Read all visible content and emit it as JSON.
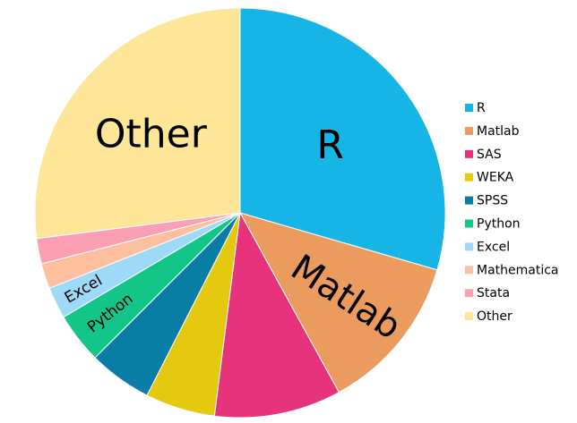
{
  "chart_data": {
    "type": "pie",
    "title": "",
    "categories": [
      "R",
      "Matlab",
      "SAS",
      "WEKA",
      "SPSS",
      "Python",
      "Excel",
      "Mathematica",
      "Stata",
      "Other"
    ],
    "values": [
      29.5,
      12.5,
      10.0,
      5.5,
      5.0,
      4.0,
      2.5,
      2.0,
      2.0,
      27.0
    ],
    "colors": [
      "#17b4e6",
      "#ea9b5d",
      "#e7327c",
      "#e5c90f",
      "#0a7da6",
      "#13c586",
      "#9fd9f8",
      "#fcc09e",
      "#fc9fb5",
      "#fde697"
    ],
    "slice_labels": [
      "R",
      "Matlab",
      "",
      "",
      "",
      "Python",
      "Excel",
      "",
      "",
      "Other"
    ],
    "start_angle": "12 o'clock",
    "direction": "clockwise",
    "legend": {
      "position": "right",
      "entries": [
        "R",
        "Matlab",
        "SAS",
        "WEKA",
        "SPSS",
        "Python",
        "Excel",
        "Mathematica",
        "Stata",
        "Other"
      ]
    }
  }
}
